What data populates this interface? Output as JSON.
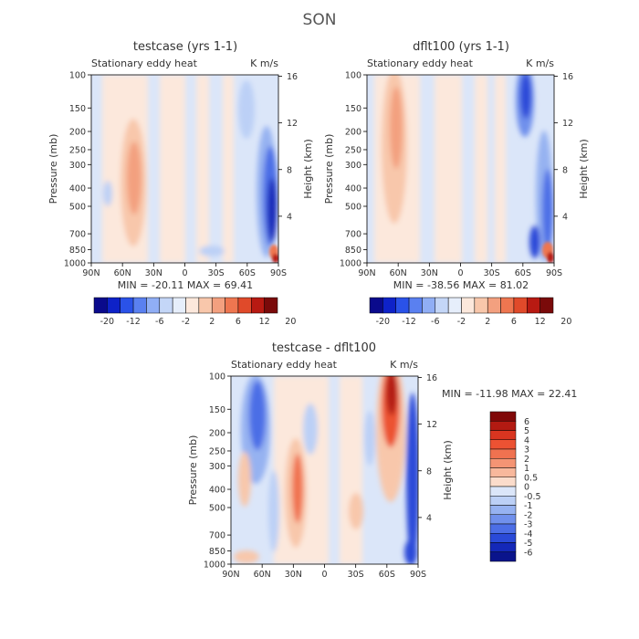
{
  "main_title": "SON",
  "scale": {
    "cb1_labels": [
      "-20",
      "-12",
      "-6",
      "-2",
      "2",
      "6",
      "12",
      "20"
    ],
    "cb1_colors": [
      "#0a0a8c",
      "#0e22c8",
      "#2a52e8",
      "#5a80f0",
      "#90aef5",
      "#c4d6f7",
      "#e6eefb",
      "#fce8dc",
      "#f8c7ab",
      "#f3a07f",
      "#ee7650",
      "#e04a2a",
      "#b81a12",
      "#7a0a0a"
    ],
    "cb2_labels": [
      "6",
      "5",
      "4",
      "3",
      "2",
      "1",
      "0.5",
      "0",
      "-0.5",
      "-1",
      "-2",
      "-3",
      "-4",
      "-5",
      "-6"
    ],
    "cb2_colors": [
      "#800808",
      "#b31a12",
      "#d93520",
      "#ec5233",
      "#f07250",
      "#f49474",
      "#f8b89c",
      "#fbdccb",
      "#dbe6f9",
      "#bcd0f6",
      "#96b2f1",
      "#7090ec",
      "#4c6ee6",
      "#2a4ad8",
      "#1428b8",
      "#0a148c"
    ]
  },
  "chart_data": [
    {
      "type": "heatmap",
      "title": "testcase (yrs 1-1)",
      "subtitle_left": "Stationary eddy heat",
      "subtitle_right": "K m/s",
      "ylabel": "Pressure (mb)",
      "ylabel_right": "Height (km)",
      "xticks": [
        "90N",
        "60N",
        "30N",
        "0",
        "30S",
        "60S",
        "90S"
      ],
      "yticks": [
        "100",
        "150",
        "200",
        "250",
        "300",
        "400",
        "500",
        "700",
        "850",
        "1000"
      ],
      "height_ticks": [
        "16",
        "12",
        "8",
        "4"
      ],
      "stats": "MIN = -20.11   MAX =  69.41"
    },
    {
      "type": "heatmap",
      "title": "dflt100 (yrs 1-1)",
      "subtitle_left": "Stationary eddy heat",
      "subtitle_right": "K m/s",
      "ylabel": "Pressure (mb)",
      "ylabel_right": "Height (km)",
      "xticks": [
        "90N",
        "60N",
        "30N",
        "0",
        "30S",
        "60S",
        "90S"
      ],
      "yticks": [
        "100",
        "150",
        "200",
        "250",
        "300",
        "400",
        "500",
        "700",
        "850",
        "1000"
      ],
      "height_ticks": [
        "16",
        "12",
        "8",
        "4"
      ],
      "stats": "MIN = -38.56   MAX =  81.02"
    },
    {
      "type": "heatmap",
      "title": "testcase - dflt100",
      "subtitle_left": "Stationary eddy heat",
      "subtitle_right": "K m/s",
      "ylabel": "Pressure (mb)",
      "ylabel_right": "Height (km)",
      "xticks": [
        "90N",
        "60N",
        "30N",
        "0",
        "30S",
        "60S",
        "90S"
      ],
      "yticks": [
        "100",
        "150",
        "200",
        "250",
        "300",
        "400",
        "500",
        "700",
        "850",
        "1000"
      ],
      "height_ticks": [
        "16",
        "12",
        "8",
        "4"
      ],
      "stats": "MIN = -11.98   MAX =  22.41"
    }
  ]
}
